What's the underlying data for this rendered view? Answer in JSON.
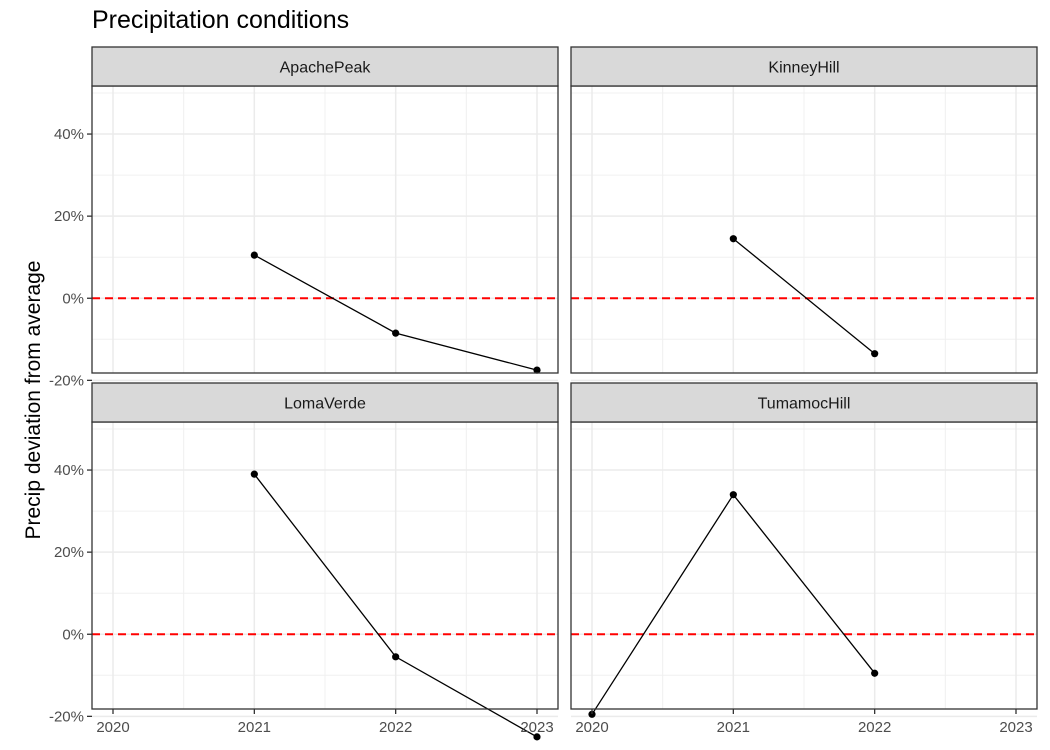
{
  "chart_data": {
    "type": "line",
    "title": "Precipitation conditions",
    "xlabel": "",
    "ylabel": "Precip deviation from average",
    "xlim": [
      2020,
      2023
    ],
    "ylim": [
      -28,
      50
    ],
    "x_ticks": [
      2020,
      2021,
      2022,
      2023
    ],
    "y_ticks": [
      40,
      20,
      0,
      -20
    ],
    "y_tick_labels": [
      "40%",
      "20%",
      "0%",
      "-20%"
    ],
    "reference_line": {
      "y": 0,
      "style": "dashed",
      "color": "#ff0000"
    },
    "grid": true,
    "panels": [
      {
        "name": "ApachePeak",
        "x": [
          2021,
          2022,
          2023
        ],
        "values": [
          10.5,
          -8.5,
          -17.5
        ]
      },
      {
        "name": "KinneyHill",
        "x": [
          2021,
          2022
        ],
        "values": [
          14.5,
          -13.5
        ]
      },
      {
        "name": "LomaVerde",
        "x": [
          2021,
          2022,
          2023
        ],
        "values": [
          39,
          -5.5,
          -25
        ]
      },
      {
        "name": "TumamocHill",
        "x": [
          2020,
          2021,
          2022
        ],
        "values": [
          -19.5,
          34,
          -9.5
        ]
      }
    ]
  }
}
